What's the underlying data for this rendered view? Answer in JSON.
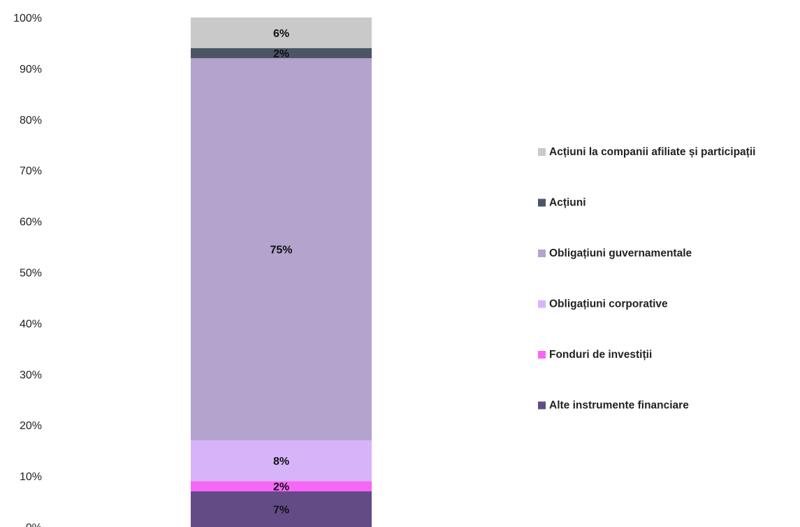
{
  "chart_data": {
    "type": "bar",
    "stacked": true,
    "percent_axis": true,
    "ylim": [
      0,
      100
    ],
    "y_ticks": [
      "0%",
      "10%",
      "20%",
      "30%",
      "40%",
      "50%",
      "60%",
      "70%",
      "80%",
      "90%",
      "100%"
    ],
    "categories": [
      ""
    ],
    "series": [
      {
        "name": "Alte instrumente financiare",
        "values": [
          7
        ],
        "label": "7%",
        "color": "#634b85"
      },
      {
        "name": "Fonduri de investiții",
        "values": [
          2
        ],
        "label": "2%",
        "color": "#f767f7"
      },
      {
        "name": "Obligațiuni corporative",
        "values": [
          8
        ],
        "label": "8%",
        "color": "#d7b4fa"
      },
      {
        "name": "Obligațiuni guvernamentale",
        "values": [
          75
        ],
        "label": "75%",
        "color": "#b3a3cd"
      },
      {
        "name": "Acțiuni",
        "values": [
          2
        ],
        "label": "2%",
        "color": "#4b5566"
      },
      {
        "name": "Acțiuni la companii afiliate și participații",
        "values": [
          6
        ],
        "label": "6%",
        "color": "#c9c9c9"
      }
    ],
    "legend_position": "right",
    "legend_order": [
      "Acțiuni la companii afiliate și participații",
      "Acțiuni",
      "Obligațiuni guvernamentale",
      "Obligațiuni corporative",
      "Fonduri de investiții",
      "Alte instrumente financiare"
    ],
    "grid": false
  }
}
